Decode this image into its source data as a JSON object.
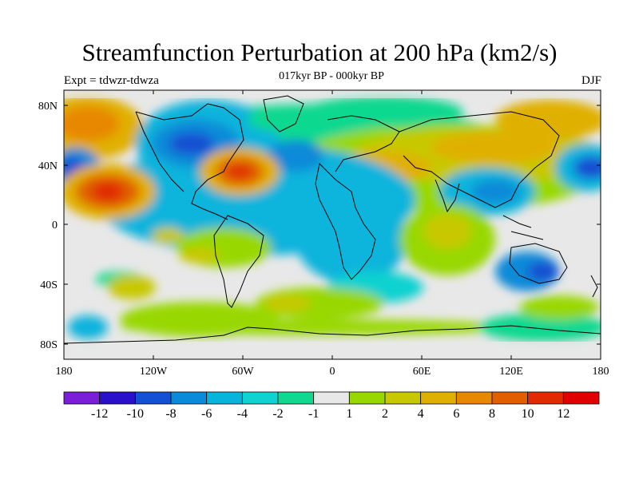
{
  "header": {
    "title": "Streamfunction Perturbation at 200 hPa (km2/s)",
    "subtitle": "017kyr BP - 000kyr BP",
    "left_label": "Expt = tdwzr-tdwza",
    "right_label": "DJF"
  },
  "map": {
    "lat_labels": [
      "80N",
      "40N",
      "0",
      "40S",
      "80S"
    ],
    "lon_labels": [
      "180",
      "120W",
      "60W",
      "0",
      "60E",
      "120E",
      "180"
    ]
  },
  "colorbar": {
    "colors": [
      "#7b1fd6",
      "#2a10c8",
      "#1450d2",
      "#0a8ad8",
      "#08b4dc",
      "#10d2d0",
      "#10d890",
      "#e8e8e8",
      "#98d800",
      "#c8c800",
      "#e0b000",
      "#e88800",
      "#e06000",
      "#e02a00",
      "#e00000"
    ],
    "labels": [
      "-12",
      "-10",
      "-8",
      "-6",
      "-4",
      "-2",
      "-1",
      "1",
      "2",
      "4",
      "6",
      "8",
      "10",
      "12"
    ]
  }
}
